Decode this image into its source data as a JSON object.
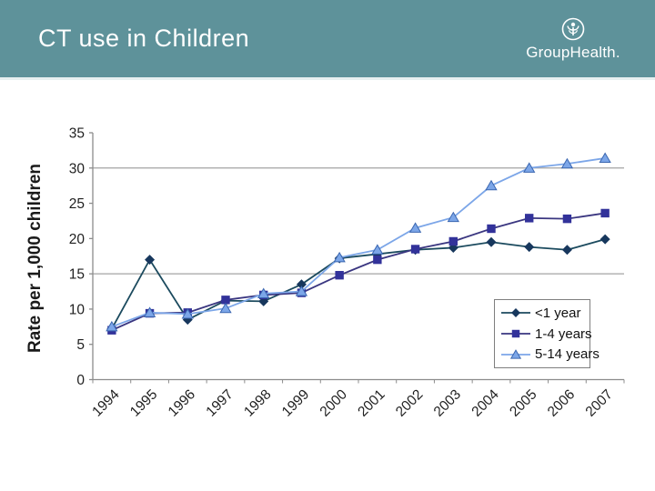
{
  "header": {
    "title": "CT use in Children",
    "brand": "GroupHealth."
  },
  "colors": {
    "header_bg": "#5E929A",
    "header_text": "#FFFFFF",
    "background": "#FFFFFF",
    "axis": "#8C8C8C",
    "grid": "#A3A3A3",
    "tick_text": "#1F1F1F",
    "legend_border": "#7F7F7F"
  },
  "chart_data": {
    "type": "line",
    "title": "",
    "xlabel": "",
    "ylabel": "Rate per 1,000 children",
    "x": [
      "1994",
      "1995",
      "1996",
      "1997",
      "1998",
      "1999",
      "2000",
      "2001",
      "2002",
      "2003",
      "2004",
      "2005",
      "2006",
      "2007"
    ],
    "ylim": [
      0,
      35
    ],
    "yticks": [
      0,
      5,
      10,
      15,
      20,
      25,
      30,
      35
    ],
    "gridlines_y": [
      15,
      30
    ],
    "grid": "horizontal gridlines at 15 and 30 only",
    "legend_position": "inside lower right",
    "x_tick_label_rotation": -45,
    "series": [
      {
        "name": "<1 year",
        "marker": "diamond",
        "line_color": "#1B4A5E",
        "marker_color": "#17375D",
        "marker_edge": "#17375D",
        "values": [
          7.2,
          17.0,
          8.5,
          11.2,
          11.1,
          13.5,
          17.2,
          17.8,
          18.4,
          18.7,
          19.5,
          18.8,
          18.4,
          19.9
        ]
      },
      {
        "name": "1-4 years",
        "marker": "square",
        "line_color": "#3A3680",
        "marker_color": "#32329A",
        "marker_edge": "#32329A",
        "values": [
          7.0,
          9.4,
          9.5,
          11.3,
          12.0,
          12.3,
          14.8,
          17.0,
          18.5,
          19.6,
          21.4,
          22.9,
          22.8,
          23.6
        ]
      },
      {
        "name": "5-14 years",
        "marker": "triangle",
        "line_color": "#7CA6E8",
        "marker_color": "#7CA6E8",
        "marker_edge": "#3A66B0",
        "values": [
          7.5,
          9.5,
          9.3,
          10.1,
          12.2,
          12.5,
          17.3,
          18.4,
          21.5,
          23.0,
          27.5,
          30.0,
          30.6,
          31.4
        ]
      }
    ]
  }
}
